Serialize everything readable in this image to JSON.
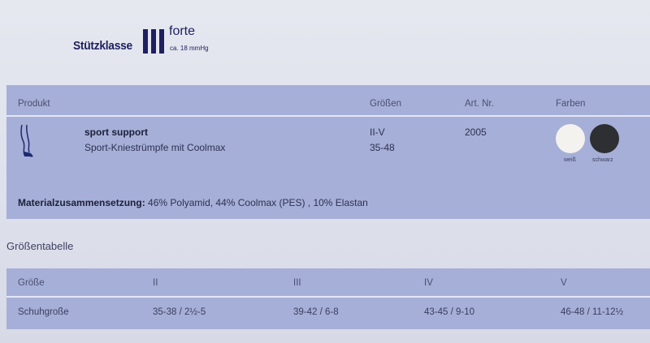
{
  "header": {
    "klasse": "Stützklasse",
    "roman": "III",
    "forte": "forte",
    "pressure": "ca. 18 mmHg"
  },
  "product_table": {
    "columns": [
      "Produkt",
      "Größen",
      "Art. Nr.",
      "Farben"
    ],
    "row": {
      "icon": "leg-stocking-icon",
      "name": "sport support",
      "description": "Sport-Kniestrümpfe mit Coolmax",
      "sizes": [
        "II-V",
        "35-48"
      ],
      "art_nr": "2005",
      "colors": [
        {
          "label": "weiß",
          "hex": "#f3f2ef"
        },
        {
          "label": "schwarz",
          "hex": "#2e2f33"
        }
      ]
    },
    "material_label": "Materialzusammensetzung:",
    "material_value": " 46% Polyamid, 44% Coolmax (PES) , 10% Elastan"
  },
  "size_table": {
    "title": "Größentabelle",
    "header": [
      "Größe",
      "II",
      "III",
      "IV",
      "V"
    ],
    "row": [
      "Schuhgroße",
      "35-38 / 2½-5",
      "39-42 / 6-8",
      "43-45 / 9-10",
      "46-48 / 11-12½"
    ]
  }
}
